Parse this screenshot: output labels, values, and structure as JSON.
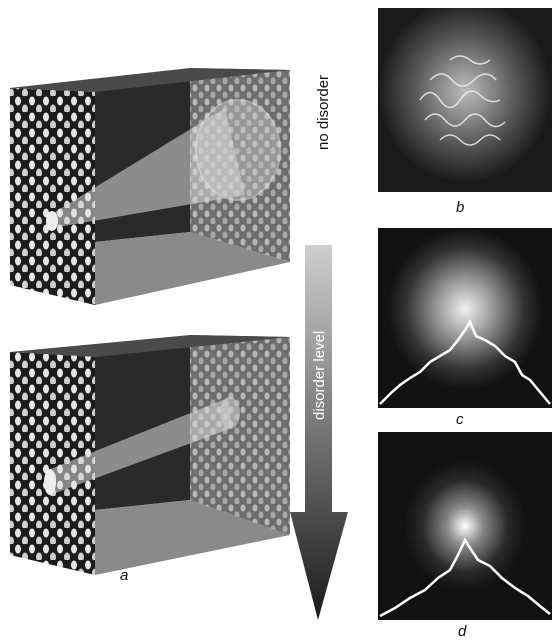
{
  "labels": {
    "no_disorder": "no disorder",
    "disorder_level": "disorder level",
    "a": "a",
    "b": "b",
    "c": "c",
    "d": "d"
  }
}
